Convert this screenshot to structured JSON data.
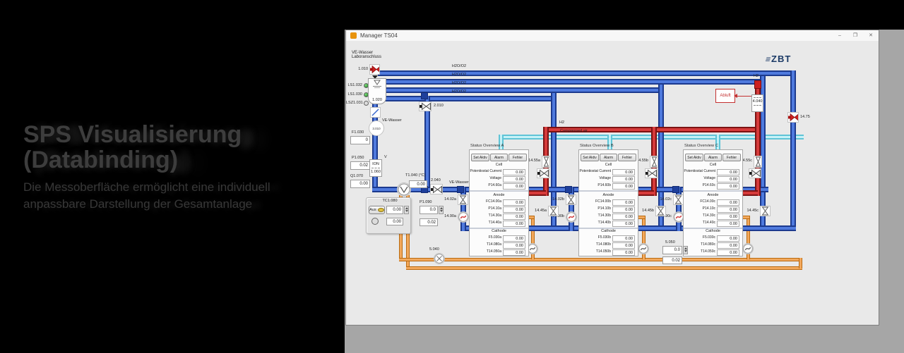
{
  "left_panel": {
    "title_line1": "SPS Visualisierung",
    "title_line2": "(Databinding)",
    "subtitle_line1": "Die Messoberfläche ermöglicht eine individuell",
    "subtitle_line2": "anpassbare Darstellung der Gesamtanlage"
  },
  "window": {
    "title": "Manager TS04",
    "minimize": "–",
    "maximize": "❐",
    "close": "✕",
    "logo_glyph": "≡",
    "logo": "ZBT"
  },
  "lines": {
    "h2o_o2": "H2O/O2",
    "h2_header": "H2",
    "compressed_air": "Compressed air"
  },
  "supply": {
    "source_line1": "VE-Wasser",
    "source_line2": "Laboranschluss",
    "valve_1010": "1.010",
    "tank_1020": "1.020",
    "ls1_032": "LS1.032",
    "ls1_030": "LS1.030",
    "lsz1_031": "LSZ1.031",
    "ve_wasser_small": "VE-Wasser",
    "pump_3010": "3.010",
    "f1_030_label": "F1.030",
    "f1_030_value": "0",
    "p1_050_label": "P1.050",
    "p1_050_value": "0.02",
    "v_label": "V",
    "ion_line1": "ION",
    "ion_line2": "1.060",
    "q1_070_label": "Q1.070",
    "q1_070_value": "0.00",
    "t1_040_label": "T1.040 (°C)",
    "t1_040_value": "0.00",
    "valve_2010": "2.010",
    "valve_2040": "2.040",
    "ve_wasser_header": "VE-Wasser"
  },
  "heater": {
    "title": "TC1.080",
    "aus": "Aus",
    "setpoint": "0.00",
    "actual": "0.00",
    "p1_090_label": "P1.090",
    "p1_090_setpoint": "0.0",
    "p1_090_actual": "0.02"
  },
  "ctrl_5050": {
    "label": "5.050",
    "setpoint": "0.0",
    "actual": "0.02"
  },
  "pump_5040": "5.040",
  "outlet": {
    "h2_label": "H2",
    "abluft": "Abluft",
    "cond_4040": "4.040",
    "valve_1475": "14.75"
  },
  "stack_valves": {
    "v1455": [
      "14.55a",
      "14.55b",
      "14.55c"
    ],
    "v1402": [
      "14.02a",
      "14.02b",
      "14.02c"
    ],
    "v1445": [
      "14.45a",
      "14.45b",
      "14.45c"
    ],
    "p1490": [
      "14.90a",
      "14.90b",
      "14.90c"
    ]
  },
  "panels": [
    {
      "title": "Status Overview A",
      "buttons": [
        "Set Aktiv",
        "Alarm",
        "Fehler"
      ],
      "cell_header": "Cell",
      "cell_rows": [
        {
          "label": "Potentiostat Current",
          "value": "0.00"
        },
        {
          "label": "Voltage",
          "value": "0.00"
        },
        {
          "label": "P14.60a",
          "value": "0.00"
        }
      ],
      "anode_header": "Anode",
      "anode_rows": [
        {
          "label": "FC14.00a",
          "value": "0.00"
        },
        {
          "label": "P14.10a",
          "value": "0.00"
        },
        {
          "label": "T14.30a",
          "value": "0.00"
        },
        {
          "label": "T14.40a",
          "value": "0.00"
        }
      ],
      "cathode_header": "Cathode",
      "cathode_rows": [
        {
          "label": "F5.030a",
          "value": "0.00"
        },
        {
          "label": "T14.080a",
          "value": "0.00"
        },
        {
          "label": "T14.050a",
          "value": "0.00"
        }
      ]
    },
    {
      "title": "Status Overview B",
      "buttons": [
        "Set Aktiv",
        "Alarm",
        "Fehler"
      ],
      "cell_header": "Cell",
      "cell_rows": [
        {
          "label": "Potentiostat Current",
          "value": "0.00"
        },
        {
          "label": "Voltage",
          "value": "0.00"
        },
        {
          "label": "P14.60b",
          "value": "0.00"
        }
      ],
      "anode_header": "Anode",
      "anode_rows": [
        {
          "label": "FC14.00b",
          "value": "0.00"
        },
        {
          "label": "P14.10b",
          "value": "0.00"
        },
        {
          "label": "T14.30b",
          "value": "0.00"
        },
        {
          "label": "T14.40b",
          "value": "0.00"
        }
      ],
      "cathode_header": "Cathode",
      "cathode_rows": [
        {
          "label": "F5.030b",
          "value": "0.00"
        },
        {
          "label": "T14.080b",
          "value": "0.00"
        },
        {
          "label": "T14.050b",
          "value": "0.00"
        }
      ]
    },
    {
      "title": "Status Overview C",
      "buttons": [
        "Set Aktiv",
        "Alarm",
        "Fehler"
      ],
      "cell_header": "Cell",
      "cell_rows": [
        {
          "label": "Potentiostat Current",
          "value": "0.00"
        },
        {
          "label": "Voltage",
          "value": "0.00"
        },
        {
          "label": "P14.60c",
          "value": "0.00"
        }
      ],
      "anode_header": "Anode",
      "anode_rows": [
        {
          "label": "FC14.00c",
          "value": "0.00"
        },
        {
          "label": "P14.10c",
          "value": "0.00"
        },
        {
          "label": "T14.30c",
          "value": "0.00"
        },
        {
          "label": "T14.40c",
          "value": "0.00"
        }
      ],
      "cathode_header": "Cathode",
      "cathode_rows": [
        {
          "label": "F5.030c",
          "value": "0.00"
        },
        {
          "label": "T14.080c",
          "value": "0.00"
        },
        {
          "label": "T14.050c",
          "value": "0.00"
        }
      ]
    }
  ]
}
